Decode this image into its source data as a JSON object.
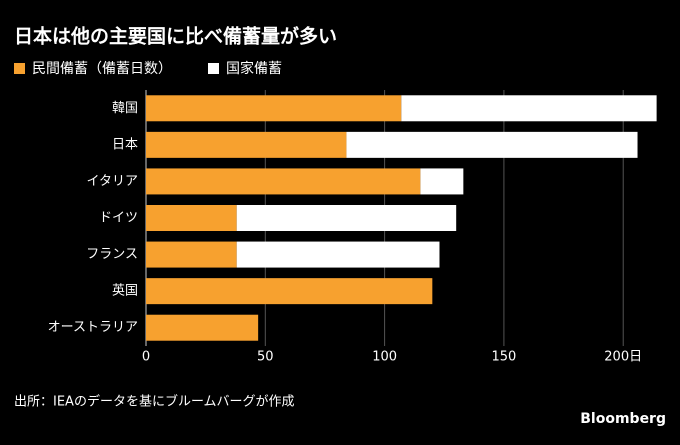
{
  "chart_data": {
    "type": "stacked-barh",
    "title": "日本は他の主要国に比べ備蓄量が多い",
    "categories": [
      "韓国",
      "日本",
      "イタリア",
      "ドイツ",
      "フランス",
      "英国",
      "オーストラリア"
    ],
    "series": [
      {
        "name": "民間備蓄（備蓄日数）",
        "color": "#f7a12f",
        "values": [
          107,
          84,
          115,
          38,
          38,
          120,
          47
        ]
      },
      {
        "name": "国家備蓄",
        "color": "#ffffff",
        "values": [
          107,
          122,
          18,
          92,
          85,
          0,
          0
        ]
      }
    ],
    "xlim": [
      0,
      215
    ],
    "xticks": [
      0,
      50,
      100,
      150,
      {
        "value": 200,
        "label": "200日"
      }
    ],
    "grid": true,
    "source": "出所：IEAのデータを基にブルームバーグが作成",
    "brand": "Bloomberg"
  }
}
